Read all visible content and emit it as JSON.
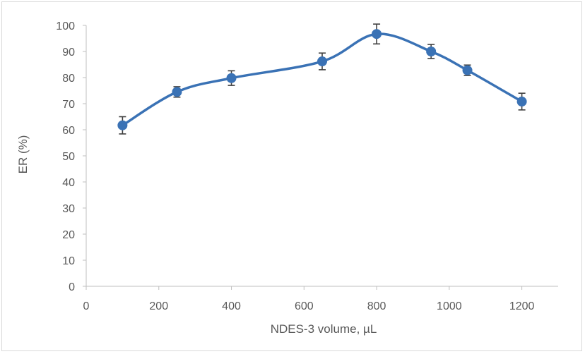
{
  "chart_data": {
    "type": "scatter",
    "title": "",
    "xlabel": "NDES-3 volume, µL",
    "ylabel": "ER (%)",
    "xlim": [
      0,
      1300
    ],
    "ylim": [
      0,
      100
    ],
    "x_ticks": [
      0,
      200,
      400,
      600,
      800,
      1000,
      1200
    ],
    "y_ticks": [
      0,
      10,
      20,
      30,
      40,
      50,
      60,
      70,
      80,
      90,
      100
    ],
    "grid": false,
    "legend": "none",
    "smooth_line": true,
    "series": [
      {
        "color": "#3a72b5",
        "points": [
          {
            "x": 100,
            "y": 61.7,
            "err": 3.3
          },
          {
            "x": 250,
            "y": 74.5,
            "err": 2.0
          },
          {
            "x": 400,
            "y": 79.8,
            "err": 2.8
          },
          {
            "x": 650,
            "y": 86.2,
            "err": 3.2
          },
          {
            "x": 800,
            "y": 96.7,
            "err": 3.8
          },
          {
            "x": 950,
            "y": 90.0,
            "err": 2.7
          },
          {
            "x": 1050,
            "y": 82.8,
            "err": 2.0
          },
          {
            "x": 1200,
            "y": 70.8,
            "err": 3.2
          }
        ]
      }
    ]
  }
}
